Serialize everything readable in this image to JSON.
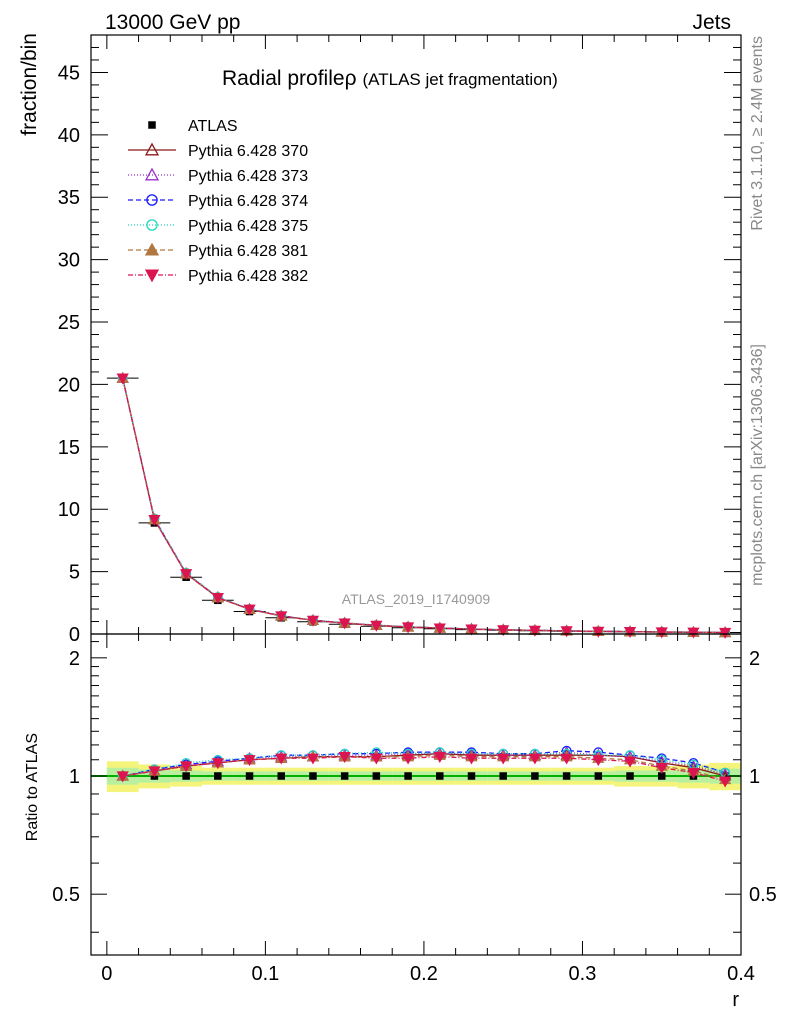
{
  "header": {
    "left": "13000 GeV pp",
    "right": "Jets"
  },
  "side": {
    "rivet": "Rivet 3.1.10, ≥ 2.4M events",
    "mcplots": "mcplots.cern.ch [arXiv:1306.3436]"
  },
  "chart_data": {
    "type": "line",
    "title_main": "Radial profileρ",
    "title_sub": "(ATLAS jet fragmentation)",
    "watermark": "ATLAS_2019_I1740909",
    "ylabel": "fraction/bin",
    "ratio_ylabel": "Ratio to ATLAS",
    "xlabel": "r",
    "xlim": [
      -0.01,
      0.4
    ],
    "ylim": [
      0,
      48
    ],
    "ratio_ylim": [
      0.35,
      2.3
    ],
    "x_ticks": [
      "0",
      "0.1",
      "0.2",
      "0.3",
      "0.4"
    ],
    "y_ticks": [
      "0",
      "5",
      "10",
      "15",
      "20",
      "25",
      "30",
      "35",
      "40",
      "45"
    ],
    "ratio_ticks": [
      "0.5",
      "1",
      "2"
    ],
    "x": [
      0.01,
      0.03,
      0.05,
      0.07,
      0.09,
      0.11,
      0.13,
      0.15,
      0.17,
      0.19,
      0.21,
      0.23,
      0.25,
      0.27,
      0.29,
      0.31,
      0.33,
      0.35,
      0.37,
      0.39
    ],
    "data": {
      "name": "ATLAS",
      "values": [
        20.5,
        8.9,
        4.55,
        2.7,
        1.8,
        1.3,
        0.98,
        0.78,
        0.62,
        0.5,
        0.42,
        0.35,
        0.3,
        0.26,
        0.22,
        0.19,
        0.17,
        0.15,
        0.14,
        0.12
      ],
      "band": [
        0.09,
        0.07,
        0.06,
        0.05,
        0.05,
        0.05,
        0.05,
        0.05,
        0.05,
        0.05,
        0.05,
        0.05,
        0.05,
        0.05,
        0.05,
        0.05,
        0.06,
        0.06,
        0.07,
        0.08
      ]
    },
    "series": [
      {
        "name": "Pythia 6.428 370",
        "color": "#8b1a1a",
        "dash": "",
        "marker": "triangle-open",
        "ratio": [
          1.0,
          1.03,
          1.06,
          1.08,
          1.1,
          1.11,
          1.12,
          1.12,
          1.12,
          1.13,
          1.14,
          1.13,
          1.13,
          1.13,
          1.13,
          1.13,
          1.12,
          1.08,
          1.05,
          1.0
        ]
      },
      {
        "name": "Pythia 6.428 373",
        "color": "#9932cc",
        "dash": "1,2",
        "marker": "triangle-open",
        "ratio": [
          1.0,
          1.03,
          1.07,
          1.09,
          1.11,
          1.12,
          1.12,
          1.13,
          1.13,
          1.14,
          1.14,
          1.14,
          1.13,
          1.13,
          1.15,
          1.13,
          1.12,
          1.09,
          1.06,
          1.01
        ]
      },
      {
        "name": "Pythia 6.428 374",
        "color": "#1a1aff",
        "dash": "5,3",
        "marker": "circle-open",
        "ratio": [
          1.0,
          1.04,
          1.07,
          1.09,
          1.11,
          1.13,
          1.13,
          1.14,
          1.14,
          1.15,
          1.15,
          1.15,
          1.14,
          1.14,
          1.16,
          1.15,
          1.13,
          1.11,
          1.08,
          1.02
        ]
      },
      {
        "name": "Pythia 6.428 375",
        "color": "#20d8c0",
        "dash": "1,2",
        "marker": "circle-open",
        "ratio": [
          1.0,
          1.04,
          1.08,
          1.1,
          1.11,
          1.13,
          1.13,
          1.14,
          1.15,
          1.14,
          1.15,
          1.14,
          1.14,
          1.14,
          1.14,
          1.13,
          1.13,
          1.1,
          1.07,
          1.02
        ]
      },
      {
        "name": "Pythia 6.428 381",
        "color": "#b07840",
        "dash": "5,3",
        "marker": "triangle-filled",
        "ratio": [
          1.0,
          1.03,
          1.06,
          1.08,
          1.1,
          1.11,
          1.12,
          1.12,
          1.12,
          1.12,
          1.13,
          1.12,
          1.12,
          1.12,
          1.12,
          1.11,
          1.1,
          1.06,
          1.03,
          0.98
        ]
      },
      {
        "name": "Pythia 6.428 382",
        "color": "#dc1450",
        "dash": "5,2,1,2",
        "marker": "triangle-down-filled",
        "ratio": [
          1.0,
          1.03,
          1.06,
          1.08,
          1.1,
          1.11,
          1.11,
          1.12,
          1.11,
          1.11,
          1.12,
          1.11,
          1.11,
          1.11,
          1.11,
          1.1,
          1.09,
          1.05,
          1.02,
          0.97
        ]
      }
    ]
  }
}
